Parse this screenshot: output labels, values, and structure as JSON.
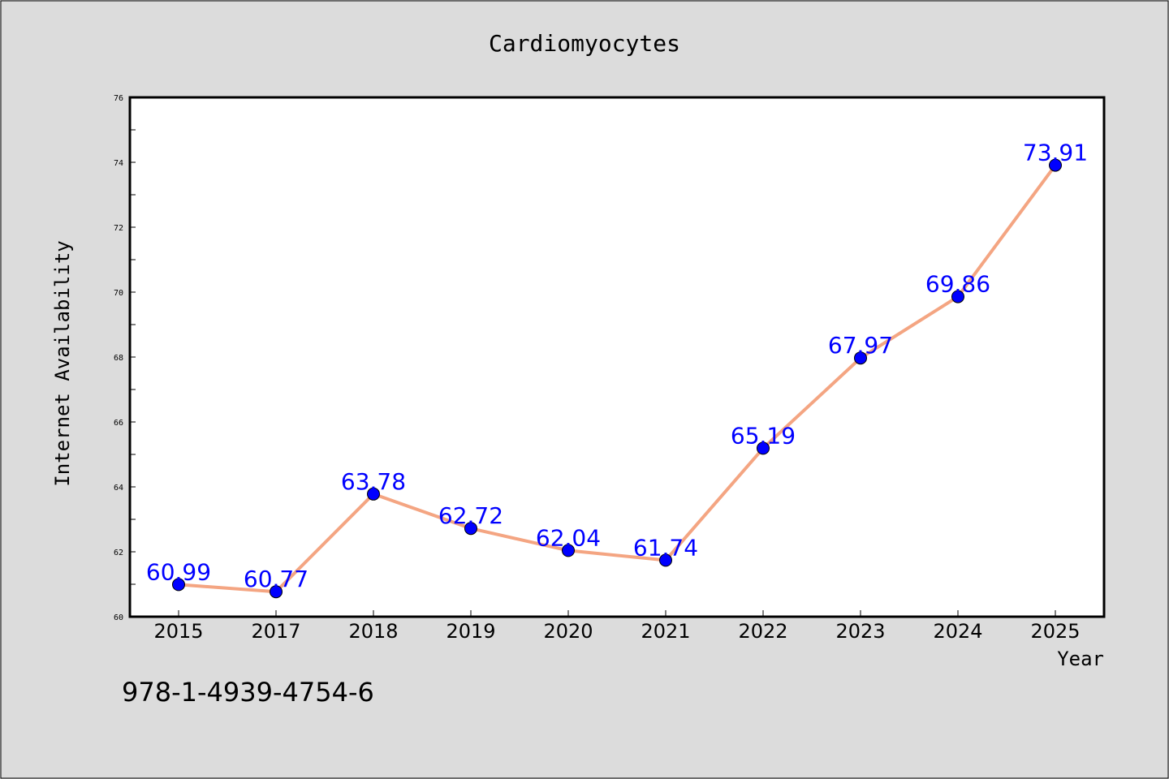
{
  "chart_data": {
    "type": "line",
    "title": "Cardiomyocytes",
    "xlabel": "Year",
    "ylabel": "Internet Availability",
    "categories": [
      "2015",
      "2017",
      "2018",
      "2019",
      "2020",
      "2021",
      "2022",
      "2023",
      "2024",
      "2025"
    ],
    "series": [
      {
        "values": [
          60.99,
          60.77,
          63.78,
          62.72,
          62.04,
          61.74,
          65.19,
          67.97,
          69.86,
          73.91
        ],
        "data_labels": [
          "60.99",
          "60.77",
          "63.78",
          "62.72",
          "62.04",
          "61.74",
          "65.19",
          "67.97",
          "69.86",
          "73.91"
        ]
      }
    ],
    "ylim": [
      60,
      76
    ],
    "yticks": [
      "60",
      "62",
      "64",
      "66",
      "68",
      "70",
      "72",
      "74",
      "76"
    ],
    "grid": false,
    "line_color": "#f4a582",
    "marker_color": "#0000ff",
    "label_color": "#0000ff"
  },
  "footer": {
    "code": "978-1-4939-4754-6"
  },
  "colors": {
    "background": "#dcdcdc",
    "plot_background": "#ffffff"
  }
}
